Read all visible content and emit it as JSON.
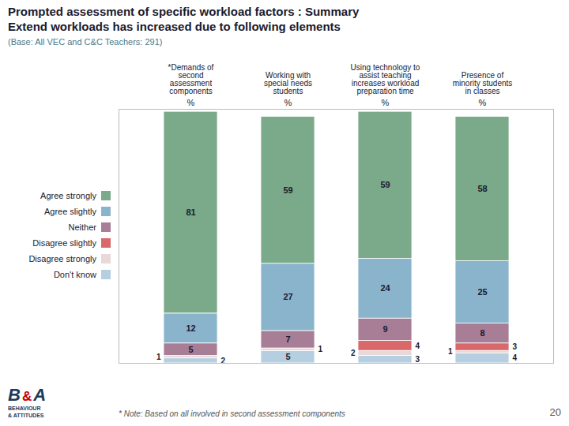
{
  "chart_data": {
    "type": "bar",
    "stacked": true,
    "title": "Prompted assessment of specific workload factors : Summary\nExtend workloads has increased due to following elements",
    "subtitle": "(Base: All VEC and C&C Teachers: 291)",
    "categories": [
      "*Demands of\nsecond\nassessment\ncomponents",
      "Working with\nspecial needs\nstudents",
      "Using technology to\nassist teaching\nincreases workload\npreparation time",
      "Presence of\nminority students\nin classes"
    ],
    "series": [
      {
        "name": "Agree strongly",
        "color": "#7aaa8a",
        "values": [
          81,
          59,
          59,
          58
        ]
      },
      {
        "name": "Agree slightly",
        "color": "#8ab4cc",
        "values": [
          12,
          27,
          24,
          25
        ]
      },
      {
        "name": "Neither",
        "color": "#a87e96",
        "values": [
          5,
          7,
          9,
          8
        ]
      },
      {
        "name": "Disagree slightly",
        "color": "#d9686a",
        "values": [
          0,
          0,
          4,
          3
        ]
      },
      {
        "name": "Disagree strongly",
        "color": "#e8d8d8",
        "values": [
          1,
          1,
          2,
          1
        ]
      },
      {
        "name": "Don't know",
        "color": "#b5cfe0",
        "values": [
          2,
          5,
          3,
          4
        ]
      }
    ],
    "ylim": [
      0,
      102
    ],
    "yticks": [],
    "tick_labels": "x",
    "data_labels": true,
    "grid": false,
    "legend": "left",
    "annotations": [
      "* Note: Based on all involved in second assessment components",
      "20",
      "%",
      "B",
      "&",
      "A",
      "BEHAVIOUR",
      "& ATTITUDES"
    ]
  }
}
